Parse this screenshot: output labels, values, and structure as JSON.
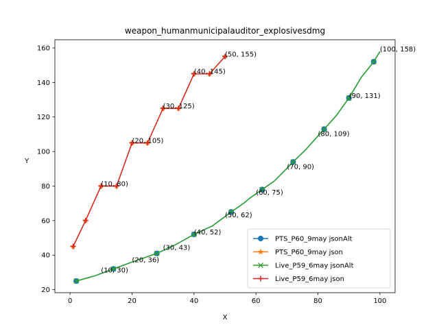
{
  "chart_data": {
    "type": "line",
    "title": "weapon_humanmunicipalauditor_explosivesdmg",
    "xlabel": "X",
    "ylabel": "Y",
    "xlim": [
      -4.9,
      104.9
    ],
    "ylim": [
      18.25,
      164.75
    ],
    "xticks": [
      0,
      20,
      40,
      60,
      80,
      100
    ],
    "yticks": [
      20,
      40,
      60,
      80,
      100,
      120,
      140,
      160
    ],
    "grid": false,
    "legend_position": "lower right",
    "series": [
      {
        "name": "PTS_P60_9may jsonAlt",
        "color": "#1f77b4",
        "marker": "circle",
        "x": [
          2,
          8,
          14,
          20,
          28,
          34,
          40,
          46,
          52,
          56,
          58,
          62,
          66,
          72,
          76,
          80,
          82,
          86,
          88,
          90,
          92,
          94,
          98,
          100
        ],
        "y": [
          25,
          28,
          32,
          36,
          41,
          46,
          52,
          57,
          65,
          70,
          73,
          78,
          83,
          94,
          101,
          109,
          113,
          121,
          126,
          131,
          137,
          143,
          152,
          158
        ],
        "marker_x": [
          2,
          14,
          28,
          40,
          52,
          62,
          72,
          82,
          90,
          98
        ],
        "marker_y": [
          25,
          32,
          41,
          52,
          65,
          78,
          94,
          113,
          131,
          152
        ]
      },
      {
        "name": "PTS_P60_9may json",
        "color": "#ff7f0e",
        "marker": "star",
        "x": [
          1,
          5,
          10,
          15,
          20,
          25,
          30,
          35,
          40,
          45,
          50
        ],
        "y": [
          45,
          60,
          80,
          80,
          105,
          105,
          125,
          125,
          145,
          145,
          155
        ]
      },
      {
        "name": "Live_P59_6may jsonAlt",
        "color": "#2ca02c",
        "marker": "x",
        "x": [
          2,
          8,
          14,
          20,
          28,
          34,
          40,
          46,
          52,
          56,
          58,
          62,
          66,
          72,
          76,
          80,
          82,
          86,
          88,
          90,
          92,
          94,
          98,
          100
        ],
        "y": [
          25,
          28,
          32,
          36,
          41,
          46,
          52,
          57,
          65,
          70,
          73,
          78,
          83,
          94,
          101,
          109,
          113,
          121,
          126,
          131,
          137,
          143,
          152,
          158
        ],
        "marker_x": [
          2,
          14,
          28,
          40,
          52,
          62,
          72,
          82,
          90,
          98
        ],
        "marker_y": [
          25,
          32,
          41,
          52,
          65,
          78,
          94,
          113,
          131,
          152
        ]
      },
      {
        "name": "Live_P59_6may json",
        "color": "#d62728",
        "marker": "plus",
        "x": [
          1,
          5,
          10,
          15,
          20,
          25,
          30,
          35,
          40,
          45,
          50
        ],
        "y": [
          45,
          60,
          80,
          80,
          105,
          105,
          125,
          125,
          145,
          145,
          155
        ]
      }
    ],
    "annotations": [
      {
        "text": "(10, 30)",
        "x": 10,
        "y": 30
      },
      {
        "text": "(20, 36)",
        "x": 20,
        "y": 36
      },
      {
        "text": "(30, 43)",
        "x": 30,
        "y": 43
      },
      {
        "text": "(40, 52)",
        "x": 40,
        "y": 52
      },
      {
        "text": "(50, 62)",
        "x": 50,
        "y": 62
      },
      {
        "text": "(60, 75)",
        "x": 60,
        "y": 75
      },
      {
        "text": "(70, 90)",
        "x": 70,
        "y": 90
      },
      {
        "text": "(80, 109)",
        "x": 80,
        "y": 109
      },
      {
        "text": "(90, 131)",
        "x": 90,
        "y": 131
      },
      {
        "text": "(100, 158)",
        "x": 100,
        "y": 158
      },
      {
        "text": "(10, 80)",
        "x": 10,
        "y": 80
      },
      {
        "text": "(20, 105)",
        "x": 20,
        "y": 105
      },
      {
        "text": "(30, 125)",
        "x": 30,
        "y": 125
      },
      {
        "text": "(40, 145)",
        "x": 40,
        "y": 145
      },
      {
        "text": "(50, 155)",
        "x": 50,
        "y": 155
      }
    ]
  }
}
